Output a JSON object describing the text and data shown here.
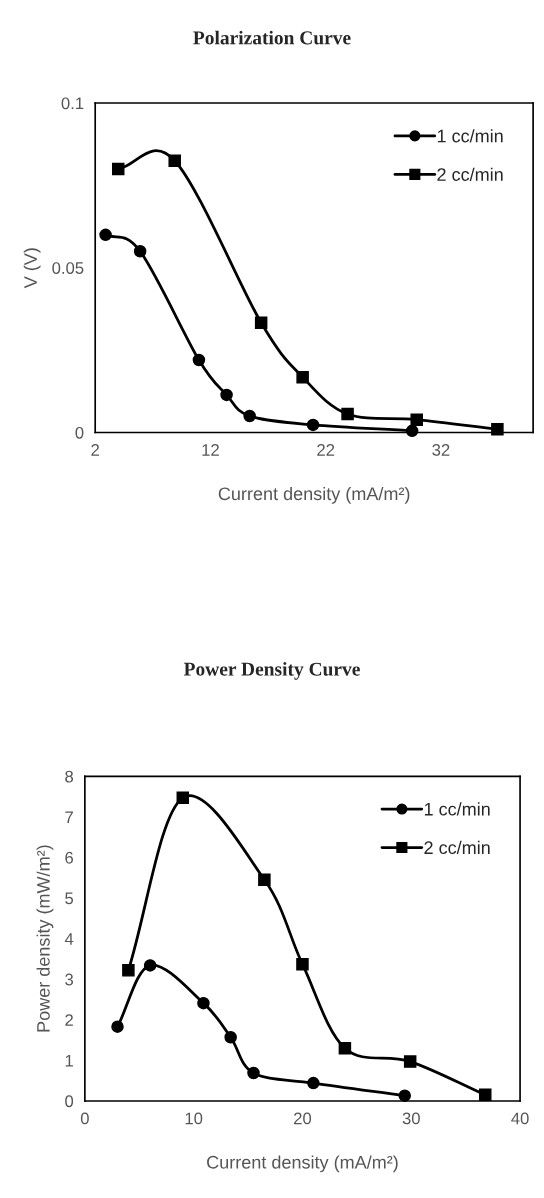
{
  "chart_data": [
    {
      "type": "line",
      "title": "Polarization Curve",
      "xlabel": "Current density (mA/m²)",
      "ylabel": "V (V)",
      "xlim": [
        2,
        40
      ],
      "xticks": [
        2,
        12,
        22,
        32
      ],
      "ylim": [
        0,
        0.1
      ],
      "yticks": [
        0,
        0.05,
        0.1
      ],
      "grid": false,
      "legend": "top right",
      "line_style": "solid",
      "series": [
        {
          "name": "1 cc/min",
          "color": "#000000",
          "marker": "circle",
          "x": [
            2.9,
            5.9,
            11.0,
            13.4,
            15.4,
            20.9,
            29.5
          ],
          "values": [
            0.06,
            0.055,
            0.022,
            0.0114,
            0.005,
            0.0023,
            0.0005
          ]
        },
        {
          "name": "2 cc/min",
          "color": "#000000",
          "marker": "square",
          "x": [
            4.0,
            8.9,
            16.4,
            20.0,
            23.9,
            29.9,
            36.9
          ],
          "values": [
            0.08,
            0.0825,
            0.0333,
            0.0168,
            0.0056,
            0.0039,
            0.001
          ]
        }
      ]
    },
    {
      "type": "line",
      "title": "Power Density Curve",
      "xlabel": "Current density (mA/m²)",
      "ylabel": "Power density (mW/m²)",
      "xlim": [
        0,
        40
      ],
      "xticks": [
        0,
        10,
        20,
        30,
        40
      ],
      "ylim": [
        0,
        8
      ],
      "yticks": [
        0,
        1,
        2,
        3,
        4,
        5,
        6,
        7,
        8
      ],
      "grid": false,
      "legend": "top right",
      "line_style": "solid",
      "series": [
        {
          "name": "1 cc/min",
          "color": "#000000",
          "marker": "circle",
          "x": [
            3.0,
            6.0,
            10.9,
            13.4,
            15.5,
            21.0,
            29.4
          ],
          "values": [
            1.83,
            3.34,
            2.41,
            1.57,
            0.69,
            0.44,
            0.13
          ]
        },
        {
          "name": "2 cc/min",
          "color": "#000000",
          "marker": "square",
          "x": [
            4.0,
            9.0,
            16.5,
            20.0,
            23.9,
            29.9,
            36.8
          ],
          "values": [
            3.22,
            7.47,
            5.45,
            3.37,
            1.3,
            0.97,
            0.15
          ]
        }
      ]
    }
  ]
}
